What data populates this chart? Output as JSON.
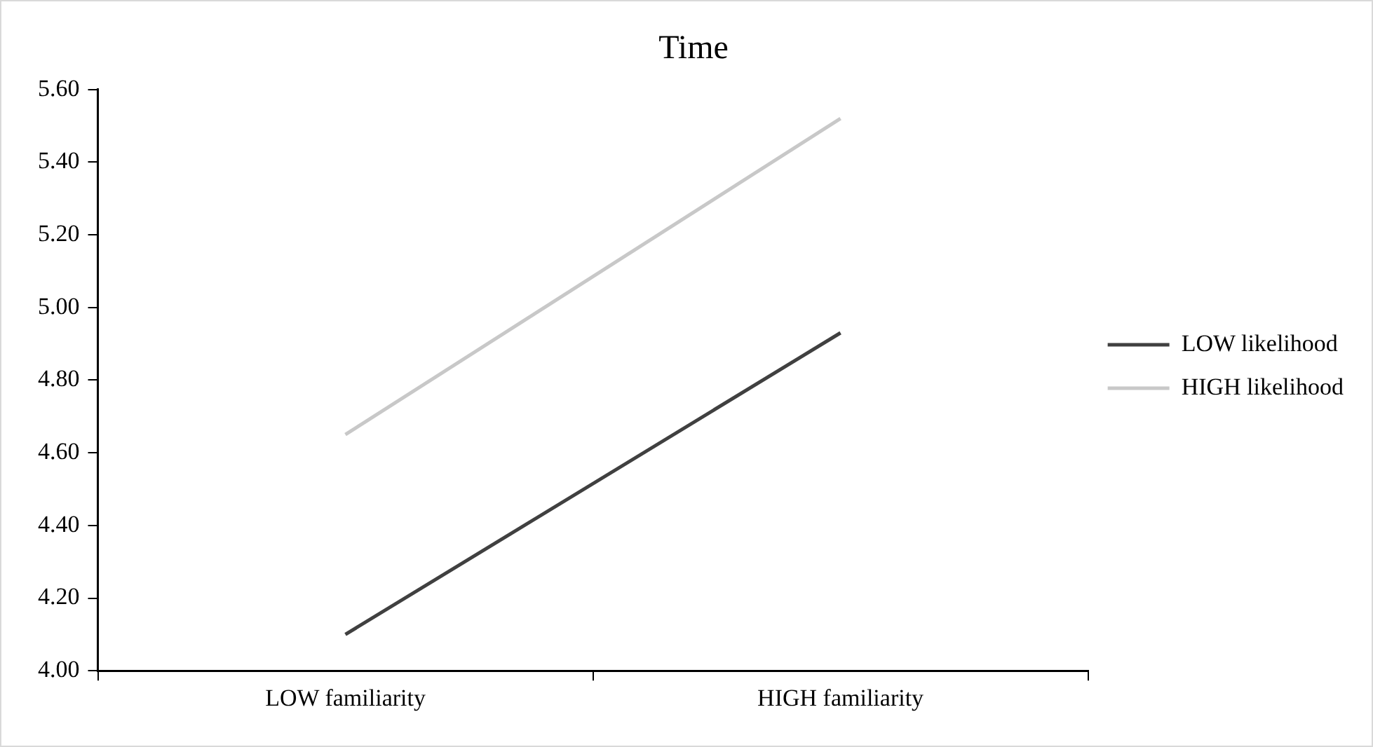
{
  "chart_data": {
    "type": "line",
    "title": "Time",
    "categories": [
      "LOW familiarity",
      "HIGH familiarity"
    ],
    "series": [
      {
        "name": "LOW likelihood",
        "color": "#404040",
        "values": [
          4.1,
          4.93
        ]
      },
      {
        "name": "HIGH likelihood",
        "color": "#c8c8c8",
        "values": [
          4.65,
          5.52
        ]
      }
    ],
    "ylim": [
      4.0,
      5.6
    ],
    "yticks": [
      {
        "value": 4.0,
        "label": "4.00"
      },
      {
        "value": 4.2,
        "label": "4.20"
      },
      {
        "value": 4.4,
        "label": "4.40"
      },
      {
        "value": 4.6,
        "label": "4.60"
      },
      {
        "value": 4.8,
        "label": "4.80"
      },
      {
        "value": 5.0,
        "label": "5.00"
      },
      {
        "value": 5.2,
        "label": "5.20"
      },
      {
        "value": 5.4,
        "label": "5.40"
      },
      {
        "value": 5.6,
        "label": "5.60"
      }
    ],
    "grid": false,
    "legend": "right",
    "marker": "none",
    "line_style": "solid"
  }
}
